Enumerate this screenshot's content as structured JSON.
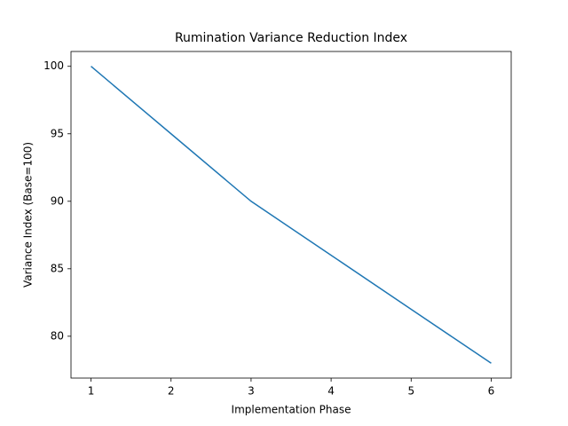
{
  "chart_data": {
    "type": "line",
    "title": "Rumination Variance Reduction Index",
    "x_label": "Implementation Phase",
    "y_label": "Variance Index (Base=100)",
    "x": [
      1,
      2,
      3,
      4,
      5,
      6
    ],
    "series": [
      {
        "color": "#1f77b4",
        "values": [
          100,
          95,
          90,
          86,
          82,
          78
        ]
      }
    ],
    "xlim": [
      0.75,
      6.25
    ],
    "xticks": [
      1,
      2,
      3,
      4,
      5,
      6
    ],
    "ylim": [
      76.9,
      101.1
    ],
    "yticks": [
      80,
      85,
      90,
      95,
      100
    ],
    "grid": false
  }
}
